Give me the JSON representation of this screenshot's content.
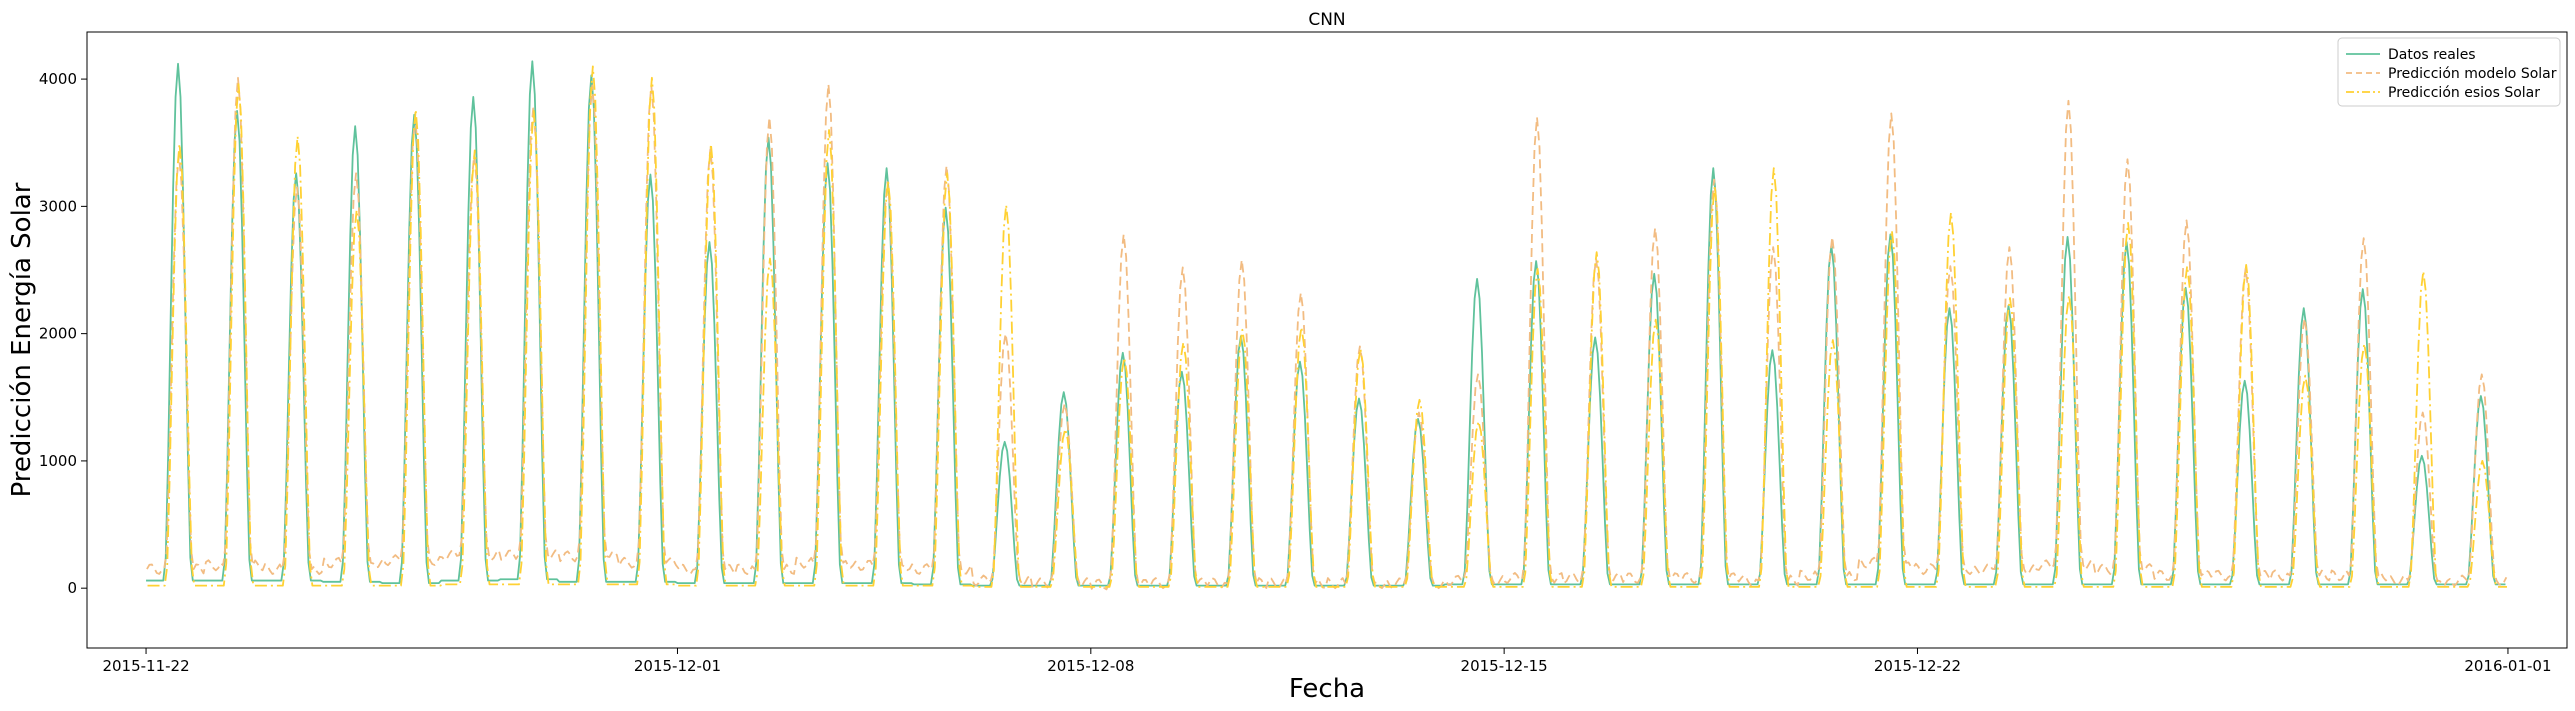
{
  "chart_data": {
    "type": "line",
    "title": "CNN",
    "xlabel": "Fecha",
    "ylabel": "Predicción Energía Solar",
    "x_start": "2015-11-22",
    "x_end": "2015-12-31",
    "xlim": [
      "2015-11-21",
      "2016-01-02"
    ],
    "ylim": [
      -470,
      4370
    ],
    "x_ticks": [
      "2015-11-22",
      "2015-12-01",
      "2015-12-08",
      "2015-12-15",
      "2015-12-22",
      "2016-01-01"
    ],
    "y_ticks": [
      0,
      1000,
      2000,
      3000,
      4000
    ],
    "legend_position": "top-right",
    "grid": false,
    "series": [
      {
        "name": "Datos reales",
        "color": "#5fc29c",
        "style": "solid",
        "peaks": [
          4120,
          3750,
          3260,
          3630,
          3720,
          3860,
          4140,
          4030,
          3250,
          2720,
          3540,
          3340,
          3300,
          2990,
          1150,
          1540,
          1850,
          1700,
          1980,
          1780,
          1490,
          1330,
          2430,
          2570,
          1970,
          2470,
          3300,
          1870,
          2690,
          2780,
          2200,
          2220,
          2760,
          2720,
          2360,
          1630,
          2200,
          2350,
          1040,
          1510
        ],
        "base": [
          60,
          60,
          60,
          50,
          40,
          60,
          70,
          50,
          50,
          40,
          40,
          40,
          40,
          30,
          20,
          20,
          20,
          20,
          20,
          20,
          20,
          20,
          30,
          30,
          30,
          30,
          30,
          30,
          30,
          30,
          30,
          30,
          30,
          30,
          30,
          30,
          30,
          30,
          30,
          30
        ]
      },
      {
        "name": "Predicción modelo Solar",
        "color": "#f2bc82",
        "style": "dashed",
        "peaks": [
          3400,
          4010,
          3150,
          3260,
          3700,
          3400,
          3770,
          3950,
          3950,
          3450,
          3700,
          3960,
          3190,
          3320,
          2000,
          1450,
          2780,
          2520,
          2580,
          2320,
          1900,
          1380,
          1680,
          3700,
          2590,
          2830,
          3210,
          2680,
          2760,
          3730,
          2530,
          2680,
          3830,
          3370,
          2890,
          2510,
          2120,
          2750,
          1380,
          1680
        ],
        "base": [
          150,
          180,
          150,
          200,
          220,
          260,
          260,
          250,
          200,
          150,
          150,
          200,
          180,
          150,
          60,
          40,
          30,
          40,
          40,
          40,
          40,
          40,
          60,
          80,
          80,
          80,
          80,
          60,
          100,
          200,
          150,
          150,
          180,
          150,
          100,
          100,
          100,
          100,
          60,
          60
        ]
      },
      {
        "name": "Predicción esios Solar",
        "color": "#ffd133",
        "style": "dashdot",
        "peaks": [
          3490,
          3960,
          3550,
          2970,
          3760,
          3440,
          3750,
          4100,
          4010,
          3490,
          2590,
          3600,
          3200,
          3260,
          3010,
          1250,
          1810,
          1930,
          2030,
          2050,
          1880,
          1480,
          1310,
          2510,
          2640,
          2110,
          3160,
          3300,
          1950,
          2810,
          2950,
          2280,
          2300,
          2870,
          2530,
          2540,
          1670,
          1920,
          2490,
          1000
        ],
        "base": [
          20,
          20,
          20,
          20,
          20,
          30,
          30,
          30,
          30,
          20,
          20,
          20,
          20,
          20,
          10,
          10,
          10,
          10,
          10,
          10,
          10,
          10,
          10,
          10,
          10,
          10,
          10,
          10,
          10,
          10,
          10,
          10,
          10,
          10,
          10,
          10,
          10,
          10,
          10,
          10
        ]
      }
    ]
  }
}
